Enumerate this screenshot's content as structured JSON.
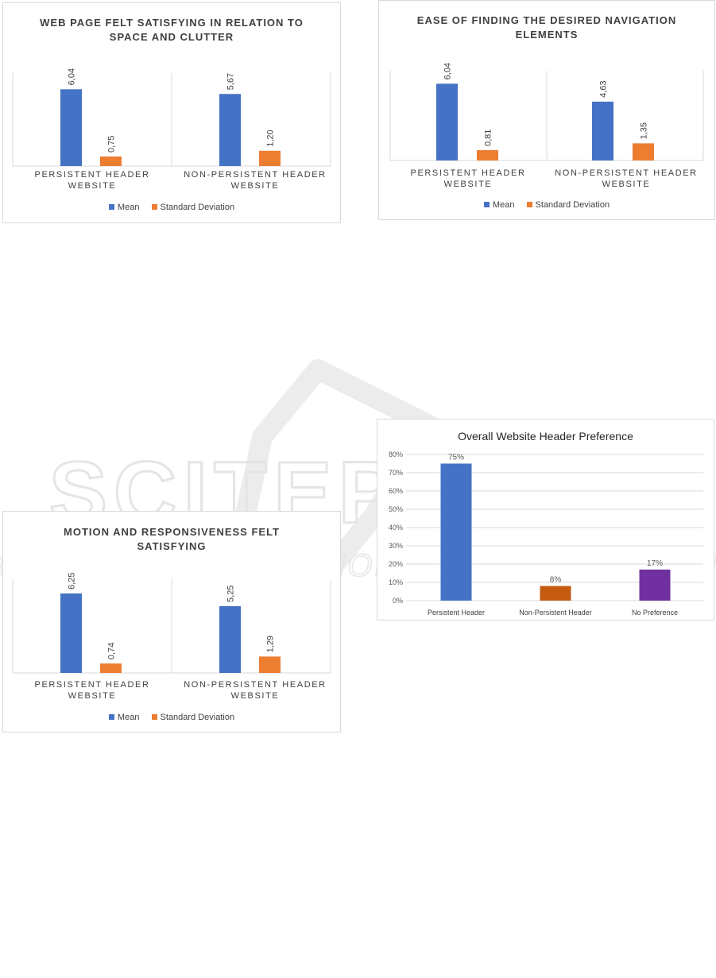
{
  "colors": {
    "mean": "#4472c4",
    "std": "#ed7d31",
    "grid": "#d9d9d9",
    "border": "#d9d9d9"
  },
  "chart_data": [
    {
      "type": "bar",
      "title": "WEB PAGE FELT SATISFYING IN RELATION TO SPACE AND CLUTTER",
      "categories": [
        "PERSISTENT HEADER WEBSITE",
        "NON-PERSISTENT HEADER WEBSITE"
      ],
      "series": [
        {
          "name": "Mean",
          "values": [
            6.04,
            5.67
          ],
          "labels": [
            "6,04",
            "5,67"
          ]
        },
        {
          "name": "Standard Deviation",
          "values": [
            0.75,
            1.2
          ],
          "labels": [
            "0,75",
            "1,20"
          ]
        }
      ],
      "legend": "bottom"
    },
    {
      "type": "bar",
      "title": "EASE OF FINDING THE DESIRED NAVIGATION ELEMENTS",
      "categories": [
        "PERSISTENT HEADER WEBSITE",
        "NON-PERSISTENT HEADER WEBSITE"
      ],
      "series": [
        {
          "name": "Mean",
          "values": [
            6.04,
            4.63
          ],
          "labels": [
            "6,04",
            "4,63"
          ]
        },
        {
          "name": "Standard Deviation",
          "values": [
            0.81,
            1.35
          ],
          "labels": [
            "0,81",
            "1,35"
          ]
        }
      ],
      "legend": "bottom"
    },
    {
      "type": "bar",
      "title": "MOTION AND RESPONSIVENESS FELT SATISFYING",
      "categories": [
        "PERSISTENT HEADER WEBSITE",
        "NON-PERSISTENT HEADER WEBSITE"
      ],
      "series": [
        {
          "name": "Mean",
          "values": [
            6.25,
            5.25
          ],
          "labels": [
            "6,25",
            "5,25"
          ]
        },
        {
          "name": "Standard Deviation",
          "values": [
            0.74,
            1.29
          ],
          "labels": [
            "0,74",
            "1,29"
          ]
        }
      ],
      "legend": "bottom"
    },
    {
      "type": "bar",
      "title": "Overall Website Header Preference",
      "categories": [
        "Persistent Header",
        "Non-Persistent Header",
        "No Preference"
      ],
      "values": [
        75,
        8,
        17
      ],
      "labels": [
        "75%",
        "8%",
        "17%"
      ],
      "colors": [
        "#4472c4",
        "#c55a11",
        "#7030a0"
      ],
      "yticks": [
        "0%",
        "10%",
        "20%",
        "30%",
        "40%",
        "50%",
        "60%",
        "70%",
        "80%"
      ],
      "ylim": [
        0,
        80
      ],
      "grid": true
    }
  ],
  "watermark": {
    "main": "SCITEPRESS",
    "sub": "SCIENCE AND TECHNOLOGY PUBLICATIONS"
  }
}
